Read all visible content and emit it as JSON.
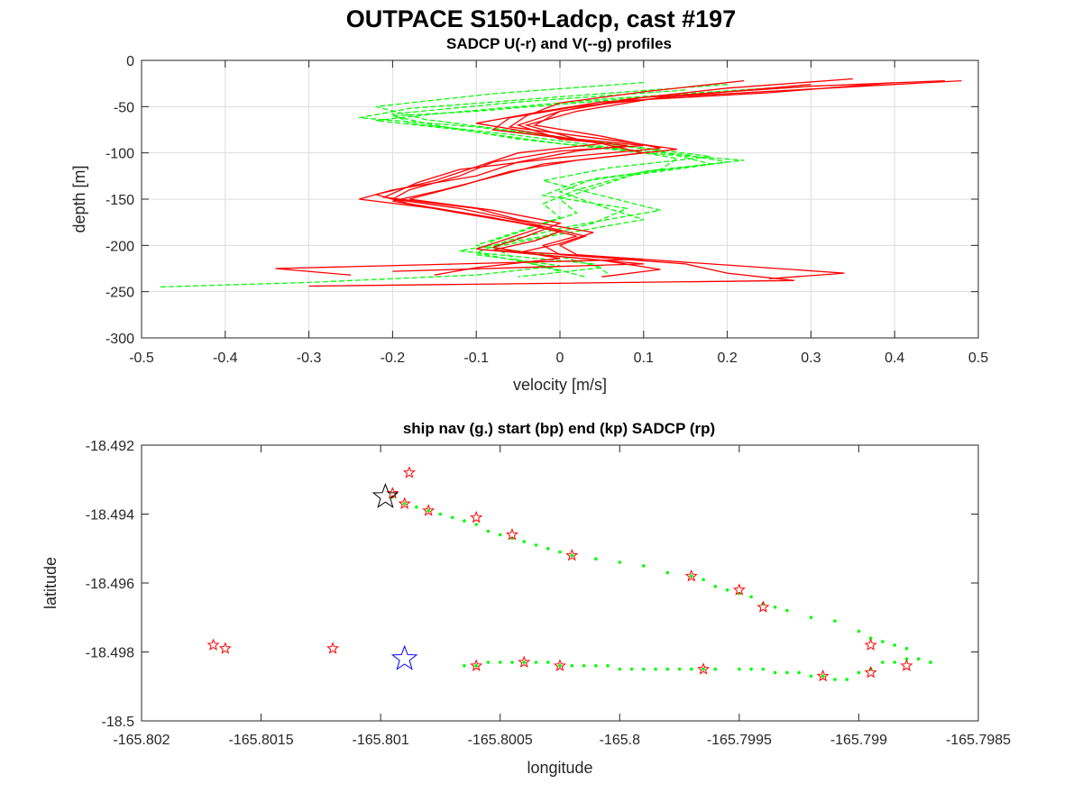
{
  "figure": {
    "title": "OUTPACE S150+Ladcp, cast #197"
  },
  "chart_data": [
    {
      "type": "line",
      "title": "SADCP U(-r) and V(--g) profiles",
      "xlabel": "velocity [m/s]",
      "ylabel": "depth [m]",
      "xlim": [
        -0.5,
        0.5
      ],
      "ylim": [
        -300,
        0
      ],
      "xticks": [
        -0.5,
        -0.4,
        -0.3,
        -0.2,
        -0.1,
        0,
        0.1,
        0.2,
        0.3,
        0.4,
        0.5
      ],
      "xtick_labels": [
        "-0.5",
        "-0.4",
        "-0.3",
        "-0.2",
        "-0.1",
        "0",
        "0.1",
        "0.2",
        "0.3",
        "0.4",
        "0.5"
      ],
      "yticks": [
        -300,
        -250,
        -200,
        -150,
        -100,
        -50,
        0
      ],
      "ytick_labels": [
        "-300",
        "-250",
        "-200",
        "-150",
        "-100",
        "-50",
        "0"
      ],
      "grid": true,
      "series_style": [
        {
          "color": "#ff0000",
          "dash": "solid"
        },
        {
          "color": "#00ff00",
          "dash": "dashed"
        }
      ],
      "series": [
        {
          "depth": [
            -22,
            -28,
            -40,
            -55,
            -70,
            -85,
            -92,
            -98,
            -110,
            -125,
            -140,
            -150,
            -160,
            -175,
            -190,
            -200,
            -210,
            -220,
            -230,
            -238,
            -244
          ],
          "values": [
            0.46,
            0.3,
            0.1,
            0.0,
            -0.05,
            0.0,
            0.08,
            0.02,
            -0.05,
            -0.1,
            -0.2,
            -0.24,
            -0.15,
            -0.05,
            0.02,
            -0.02,
            0.0,
            0.15,
            0.2,
            0.28,
            -0.3
          ]
        },
        {
          "depth": [
            -22,
            -30,
            -40,
            -55,
            -70,
            -85,
            -92,
            -98,
            -110,
            -125,
            -140,
            -150,
            -160,
            -175,
            -190,
            -200,
            -210,
            -220,
            -230,
            -236
          ],
          "values": [
            0.48,
            0.32,
            0.12,
            0.02,
            -0.04,
            0.02,
            0.1,
            0.0,
            -0.08,
            -0.12,
            -0.18,
            -0.2,
            -0.12,
            -0.04,
            0.03,
            0.0,
            0.02,
            0.18,
            0.34,
            0.25
          ]
        },
        {
          "depth": [
            -24,
            -35,
            -45,
            -55,
            -68,
            -80,
            -90,
            -100,
            -115,
            -130,
            -145,
            -155,
            -170,
            -185,
            -195,
            -205,
            -215,
            -225,
            -232
          ],
          "values": [
            0.4,
            0.25,
            0.05,
            -0.02,
            -0.1,
            -0.02,
            0.05,
            -0.05,
            -0.1,
            -0.15,
            -0.22,
            -0.18,
            -0.08,
            0.0,
            -0.03,
            -0.08,
            0.1,
            -0.34,
            -0.25
          ]
        },
        {
          "depth": [
            -20,
            -30,
            -42,
            -55,
            -70,
            -82,
            -95,
            -105,
            -118,
            -132,
            -148,
            -160,
            -172,
            -186,
            -198,
            -208,
            -220,
            -228
          ],
          "values": [
            0.35,
            0.2,
            0.08,
            0.0,
            -0.03,
            0.05,
            0.12,
            0.0,
            -0.12,
            -0.17,
            -0.21,
            -0.1,
            -0.05,
            0.04,
            0.0,
            -0.05,
            0.1,
            -0.2
          ]
        },
        {
          "depth": [
            -26,
            -38,
            -50,
            -62,
            -75,
            -88,
            -100,
            -112,
            -126,
            -140,
            -152,
            -165,
            -180,
            -192,
            -204,
            -216,
            -226,
            -234
          ],
          "values": [
            0.3,
            0.15,
            0.02,
            -0.06,
            -0.08,
            0.04,
            0.1,
            -0.02,
            -0.08,
            -0.14,
            -0.2,
            -0.12,
            -0.02,
            -0.06,
            -0.1,
            0.05,
            0.12,
            0.05
          ]
        },
        {
          "depth": [
            -22,
            -34,
            -46,
            -60,
            -72,
            -86,
            -96,
            -108,
            -120,
            -136,
            -150,
            -162,
            -176,
            -190,
            -202,
            -214,
            -224,
            -232
          ],
          "values": [
            0.22,
            0.1,
            0.0,
            -0.04,
            -0.06,
            0.06,
            0.14,
            0.02,
            -0.06,
            -0.12,
            -0.18,
            -0.08,
            0.0,
            -0.04,
            -0.08,
            0.0,
            -0.1,
            -0.15
          ]
        }
      ],
      "series_v": [
        {
          "depth": [
            -28,
            -40,
            -55,
            -60,
            -70,
            -85,
            -100,
            -108,
            -120,
            -135,
            -150,
            -165,
            -180,
            -195,
            -210,
            -222,
            -232,
            -240,
            -245
          ],
          "values": [
            0.3,
            0.1,
            -0.1,
            -0.2,
            -0.15,
            -0.05,
            0.1,
            0.22,
            0.1,
            0.05,
            0.0,
            0.02,
            -0.03,
            -0.08,
            -0.1,
            0.0,
            -0.1,
            -0.3,
            -0.48
          ]
        },
        {
          "depth": [
            -30,
            -42,
            -58,
            -65,
            -75,
            -90,
            -102,
            -110,
            -125,
            -140,
            -155,
            -170,
            -185,
            -200,
            -212,
            -224,
            -234
          ],
          "values": [
            0.25,
            0.05,
            -0.15,
            -0.22,
            -0.12,
            0.0,
            0.15,
            0.2,
            0.08,
            0.02,
            -0.02,
            0.0,
            -0.05,
            -0.1,
            0.0,
            0.05,
            -0.05
          ]
        },
        {
          "depth": [
            -26,
            -38,
            -52,
            -62,
            -72,
            -86,
            -98,
            -112,
            -128,
            -142,
            -158,
            -172,
            -188,
            -202,
            -216,
            -228
          ],
          "values": [
            0.2,
            0.02,
            -0.18,
            -0.24,
            -0.1,
            0.02,
            0.12,
            0.18,
            0.04,
            0.0,
            0.05,
            0.1,
            0.0,
            -0.08,
            -0.05,
            0.0
          ]
        },
        {
          "depth": [
            -32,
            -45,
            -58,
            -68,
            -80,
            -94,
            -106,
            -118,
            -132,
            -146,
            -160,
            -176,
            -190,
            -206,
            -220,
            -232
          ],
          "values": [
            0.15,
            -0.05,
            -0.2,
            -0.18,
            -0.06,
            0.06,
            0.14,
            0.12,
            0.02,
            -0.02,
            0.08,
            0.04,
            -0.02,
            -0.12,
            0.04,
            0.06
          ]
        },
        {
          "depth": [
            -24,
            -36,
            -50,
            -64,
            -78,
            -92,
            -104,
            -116,
            -130,
            -144,
            -162,
            -178,
            -194,
            -208,
            -222,
            -234
          ],
          "values": [
            0.1,
            -0.08,
            -0.22,
            -0.16,
            -0.04,
            0.08,
            0.18,
            0.06,
            -0.02,
            0.04,
            0.12,
            0.02,
            -0.06,
            -0.1,
            -0.02,
            0.03
          ]
        }
      ]
    },
    {
      "type": "scatter",
      "title": "ship nav (g.) start (bp) end (kp) SADCP (rp)",
      "xlabel": "longitude",
      "ylabel": "latitude",
      "xlim": [
        -165.802,
        -165.7985
      ],
      "ylim": [
        -18.5,
        -18.492
      ],
      "xticks": [
        -165.802,
        -165.8015,
        -165.801,
        -165.8005,
        -165.8,
        -165.7995,
        -165.799,
        -165.7985
      ],
      "xtick_labels": [
        "-165.802",
        "-165.8015",
        "-165.801",
        "-165.8005",
        "-165.8",
        "-165.7995",
        "-165.799",
        "-165.7985"
      ],
      "yticks": [
        -18.5,
        -18.498,
        -18.496,
        -18.494,
        -18.492
      ],
      "ytick_labels": [
        "-18.5",
        "-18.498",
        "-18.496",
        "-18.494",
        "-18.492"
      ],
      "grid": false,
      "nav": {
        "color": "#00ff00",
        "lon": [
          -165.80095,
          -165.8009,
          -165.80085,
          -165.8008,
          -165.80075,
          -165.8007,
          -165.80065,
          -165.8006,
          -165.80055,
          -165.8005,
          -165.80045,
          -165.8004,
          -165.80035,
          -165.8003,
          -165.80025,
          -165.8002,
          -165.8001,
          -165.8,
          -165.7999,
          -165.7998,
          -165.7997,
          -165.79965,
          -165.7996,
          -165.79955,
          -165.7995,
          -165.79945,
          -165.7994,
          -165.79935,
          -165.7993,
          -165.7992,
          -165.7991,
          -165.799,
          -165.79895,
          -165.7989,
          -165.79885,
          -165.7988,
          -165.7987,
          -165.80065,
          -165.8006,
          -165.80055,
          -165.8005,
          -165.80045,
          -165.8004,
          -165.80035,
          -165.8003,
          -165.80025,
          -165.8002,
          -165.80015,
          -165.8001,
          -165.80005,
          -165.8,
          -165.79995,
          -165.7999,
          -165.79985,
          -165.7998,
          -165.79975,
          -165.7997,
          -165.79965,
          -165.7996,
          -165.7995,
          -165.79945,
          -165.7994,
          -165.79935,
          -165.7993,
          -165.79925,
          -165.7992,
          -165.79915,
          -165.7991,
          -165.79905,
          -165.799,
          -165.79895,
          -165.7989,
          -165.79885,
          -165.7988,
          -165.79875,
          -165.7987
        ],
        "lat": [
          -18.4935,
          -18.4937,
          -18.4938,
          -18.4939,
          -18.494,
          -18.4941,
          -18.4942,
          -18.4943,
          -18.4945,
          -18.4946,
          -18.4947,
          -18.4948,
          -18.4949,
          -18.495,
          -18.4951,
          -18.4952,
          -18.4953,
          -18.4954,
          -18.4955,
          -18.4957,
          -18.4958,
          -18.4959,
          -18.4961,
          -18.4962,
          -18.4963,
          -18.4964,
          -18.4966,
          -18.4967,
          -18.4968,
          -18.497,
          -18.4971,
          -18.4974,
          -18.4976,
          -18.4977,
          -18.4978,
          -18.4979,
          -18.4983,
          -18.4984,
          -18.4984,
          -18.4983,
          -18.4983,
          -18.4983,
          -18.4983,
          -18.4983,
          -18.4983,
          -18.4984,
          -18.4984,
          -18.4984,
          -18.4984,
          -18.4984,
          -18.4985,
          -18.4985,
          -18.4985,
          -18.4985,
          -18.4985,
          -18.4985,
          -18.4985,
          -18.4985,
          -18.4985,
          -18.4985,
          -18.4985,
          -18.4985,
          -18.4986,
          -18.4986,
          -18.4986,
          -18.4987,
          -18.4987,
          -18.4988,
          -18.4988,
          -18.4986,
          -18.4985,
          -18.4983,
          -18.4983,
          -18.4982,
          -18.4982,
          -18.4983
        ]
      },
      "sadcp": {
        "color": "#ff0000",
        "lon": [
          -165.80088,
          -165.80095,
          -165.8009,
          -165.8008,
          -165.8006,
          -165.80045,
          -165.8002,
          -165.7997,
          -165.7995,
          -165.7994,
          -165.79895,
          -165.79895,
          -165.7988,
          -165.8017,
          -165.80165,
          -165.8012,
          -165.8006,
          -165.8004,
          -165.80025,
          -165.79965,
          -165.79915
        ],
        "lat": [
          -18.4928,
          -18.4934,
          -18.4937,
          -18.4939,
          -18.4941,
          -18.4946,
          -18.4952,
          -18.4958,
          -18.4962,
          -18.4967,
          -18.4978,
          -18.4986,
          -18.4984,
          -18.4978,
          -18.4979,
          -18.4979,
          -18.4984,
          -18.4983,
          -18.4984,
          -18.4985,
          -18.4987
        ]
      },
      "start": {
        "lon": -165.80098,
        "lat": -18.4935,
        "color": "#000000"
      },
      "end": {
        "lon": -165.8009,
        "lat": -18.4982,
        "color": "#0000ff"
      }
    }
  ]
}
